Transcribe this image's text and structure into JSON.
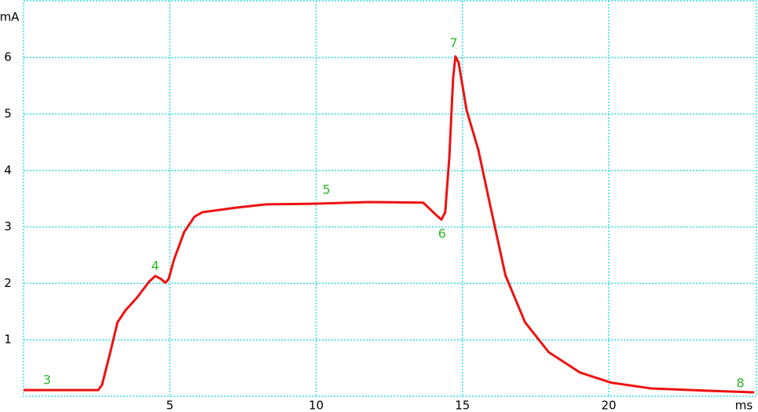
{
  "chart_data": {
    "type": "line",
    "x_label": "ms",
    "y_label": "mA",
    "xlim": [
      0,
      25.1
    ],
    "ylim": [
      0,
      7.02
    ],
    "xticks": [
      5,
      10,
      15,
      20
    ],
    "yticks": [
      1,
      2,
      3,
      4,
      5,
      6
    ],
    "grid": true,
    "series": [
      {
        "color": "#ee1111",
        "x": [
          0,
          2.55,
          2.68,
          2.95,
          3.21,
          3.48,
          3.88,
          4.29,
          4.5,
          4.69,
          4.85,
          4.96,
          5.14,
          5.49,
          5.84,
          6.11,
          7.23,
          8.3,
          9.91,
          11.79,
          13.66,
          14.06,
          14.28,
          14.41,
          14.55,
          14.68,
          14.76,
          14.87,
          15.14,
          15.54,
          15.94,
          16.47,
          17.14,
          17.95,
          19.02,
          20.09,
          21.43,
          23.31,
          24.97
        ],
        "values": [
          0.11,
          0.11,
          0.2,
          0.75,
          1.31,
          1.52,
          1.75,
          2.03,
          2.13,
          2.08,
          2.01,
          2.08,
          2.42,
          2.91,
          3.18,
          3.26,
          3.34,
          3.4,
          3.41,
          3.44,
          3.43,
          3.23,
          3.13,
          3.26,
          4.23,
          5.63,
          6.02,
          5.91,
          5.07,
          4.37,
          3.4,
          2.14,
          1.31,
          0.78,
          0.42,
          0.24,
          0.14,
          0.1,
          0.07
        ]
      }
    ],
    "annotations": [
      {
        "text": "3",
        "x": 0.8,
        "y": 0.28
      },
      {
        "text": "4",
        "x": 4.5,
        "y": 2.3
      },
      {
        "text": "5",
        "x": 10.35,
        "y": 3.65
      },
      {
        "text": "6",
        "x": 14.3,
        "y": 2.87
      },
      {
        "text": "7",
        "x": 14.7,
        "y": 6.25
      },
      {
        "text": "8",
        "x": 24.5,
        "y": 0.22
      }
    ]
  }
}
